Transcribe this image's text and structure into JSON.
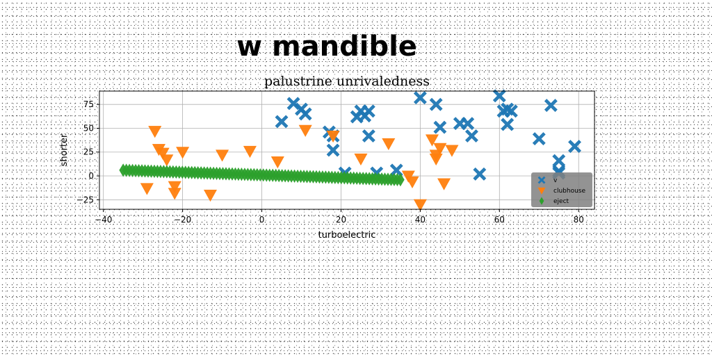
{
  "chart_data": {
    "type": "scatter",
    "suptitle": "w mandible",
    "title": "palustrine unrivaledness",
    "xlabel": "turboelectric",
    "ylabel": "shorter",
    "xlim": [
      -41,
      84
    ],
    "ylim": [
      -35,
      89
    ],
    "xticks": [
      -40,
      -20,
      0,
      20,
      40,
      60,
      80
    ],
    "yticks": [
      -25,
      0,
      25,
      50,
      75
    ],
    "grid": true,
    "legend_position": "lower-right",
    "series": [
      {
        "name": "v",
        "color": "#1f77b4",
        "marker": "X",
        "points": [
          [
            5,
            57
          ],
          [
            8,
            76
          ],
          [
            10,
            70
          ],
          [
            11,
            65
          ],
          [
            17,
            46
          ],
          [
            18,
            27
          ],
          [
            18,
            42
          ],
          [
            21,
            3
          ],
          [
            24,
            62
          ],
          [
            25,
            68
          ],
          [
            26,
            63
          ],
          [
            27,
            68
          ],
          [
            27,
            42
          ],
          [
            29,
            3
          ],
          [
            34,
            6
          ],
          [
            40,
            82
          ],
          [
            44,
            75
          ],
          [
            45,
            51
          ],
          [
            50,
            55
          ],
          [
            52,
            55
          ],
          [
            53,
            42
          ],
          [
            55,
            2
          ],
          [
            60,
            84
          ],
          [
            61,
            68
          ],
          [
            62,
            70
          ],
          [
            62,
            54
          ],
          [
            63,
            68
          ],
          [
            70,
            39
          ],
          [
            73,
            74
          ],
          [
            75,
            16
          ],
          [
            75,
            5
          ],
          [
            75,
            3
          ],
          [
            79,
            31
          ]
        ]
      },
      {
        "name": "clubhouse",
        "color": "#ff7f0e",
        "marker": "v",
        "points": [
          [
            -27,
            47
          ],
          [
            -26,
            28
          ],
          [
            -25,
            24
          ],
          [
            -24,
            17
          ],
          [
            -29,
            -13
          ],
          [
            -22,
            -11
          ],
          [
            -22,
            -18
          ],
          [
            -20,
            25
          ],
          [
            -13,
            -20
          ],
          [
            -10,
            22
          ],
          [
            -3,
            26
          ],
          [
            4,
            15
          ],
          [
            11,
            48
          ],
          [
            18,
            42
          ],
          [
            25,
            18
          ],
          [
            32,
            34
          ],
          [
            37,
            0
          ],
          [
            38,
            -6
          ],
          [
            40,
            -30
          ],
          [
            43,
            38
          ],
          [
            44,
            22
          ],
          [
            44,
            18
          ],
          [
            45,
            29
          ],
          [
            46,
            -8
          ],
          [
            48,
            27
          ]
        ]
      },
      {
        "name": "eject",
        "color": "#2ca02c",
        "marker": "d",
        "line": {
          "x_from": -35,
          "x_to": 35,
          "y_from": 6,
          "y_to": -4,
          "count": 90
        }
      }
    ]
  }
}
